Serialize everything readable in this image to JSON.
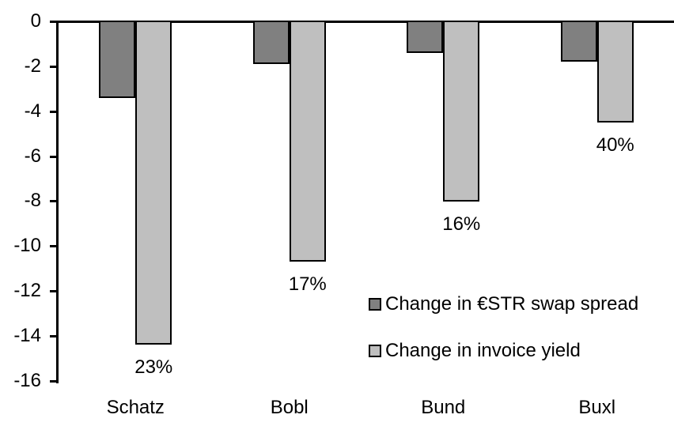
{
  "chart_data": {
    "type": "bar",
    "title": "",
    "xlabel": "",
    "ylabel": "",
    "categories": [
      "Schatz",
      "Bobl",
      "Bund",
      "Buxl"
    ],
    "series": [
      {
        "name": "Change in €STR swap spread",
        "color": "#808080",
        "values": [
          -3.3,
          -1.8,
          -1.3,
          -1.7
        ]
      },
      {
        "name": "Change in invoice yield",
        "color": "#BFBFBF",
        "values": [
          -14.3,
          -10.6,
          -7.9,
          -4.4
        ]
      }
    ],
    "bar_labels": {
      "series_index": 1,
      "values": [
        "23%",
        "17%",
        "16%",
        "40%"
      ]
    },
    "ylim": [
      -16,
      0
    ],
    "yticks": [
      0,
      -2,
      -4,
      -6,
      -8,
      -10,
      -12,
      -14,
      -16
    ],
    "ytick_labels": [
      "0",
      "-2",
      "-4",
      "-6",
      "-8",
      "-10",
      "-12",
      "-14",
      "-16"
    ],
    "grid": false,
    "legend_position": "inside-right",
    "bar_border_color": "#000000",
    "axis_color": "#000000",
    "text_color": "#000000",
    "background_color": "#FFFFFF"
  }
}
